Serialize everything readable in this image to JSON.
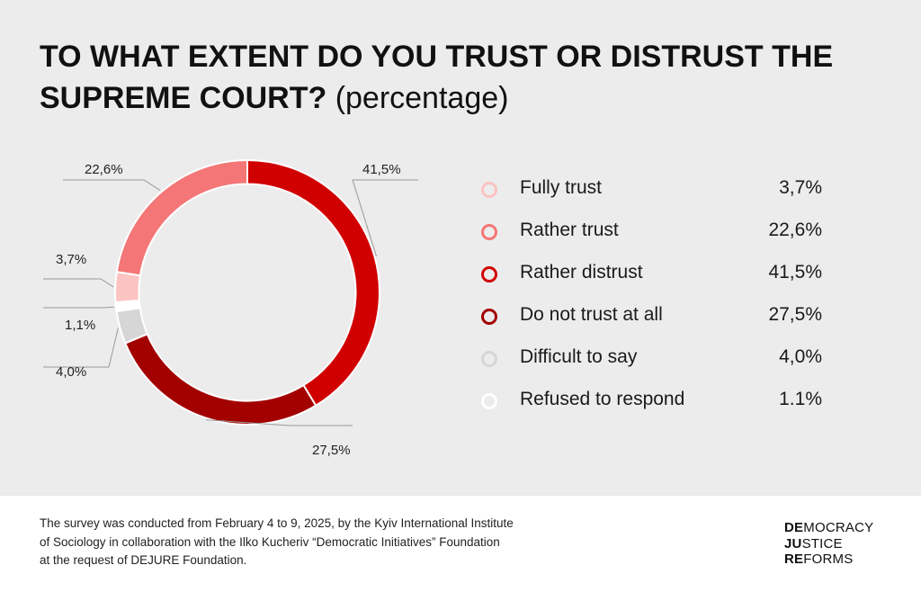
{
  "title": {
    "main": "TO WHAT EXTENT DO YOU TRUST OR DISTRUST THE SUPREME COURT?",
    "sub": "(percentage)"
  },
  "chart_data": {
    "type": "pie",
    "title": "TO WHAT EXTENT DO YOU TRUST OR DISTRUST THE SUPREME COURT? (percentage)",
    "series": [
      {
        "name": "Rather distrust",
        "value": 41.5,
        "label": "41,5%",
        "donut_label": "41,5%",
        "color": "#d10000"
      },
      {
        "name": "Do not trust at all",
        "value": 27.5,
        "label": "27,5%",
        "donut_label": "27,5%",
        "color": "#a30000"
      },
      {
        "name": "Difficult to say",
        "value": 4.0,
        "label": "4,0%",
        "donut_label": "4,0%",
        "color": "#d6d6d6"
      },
      {
        "name": "Refused to respond",
        "value": 1.1,
        "label": "1.1%",
        "donut_label": "1,1%",
        "color": "#ffffff"
      },
      {
        "name": "Fully trust",
        "value": 3.7,
        "label": "3,7%",
        "donut_label": "3,7%",
        "color": "#fcc3c3"
      },
      {
        "name": "Rather trust",
        "value": 22.6,
        "label": "22,6%",
        "donut_label": "22,6%",
        "color": "#f47676"
      }
    ],
    "legend_order": [
      "Fully trust",
      "Rather trust",
      "Rather distrust",
      "Do not trust at all",
      "Difficult to say",
      "Refused to respond"
    ],
    "legend_placement": "right",
    "inner_radius_ratio": 0.82
  },
  "legend": [
    {
      "label": "Fully trust",
      "value": "3,7%",
      "color": "#fcc3c3"
    },
    {
      "label": "Rather trust",
      "value": "22,6%",
      "color": "#f47676"
    },
    {
      "label": "Rather distrust",
      "value": "41,5%",
      "color": "#d10000"
    },
    {
      "label": "Do not trust at all",
      "value": "27,5%",
      "color": "#a30000"
    },
    {
      "label": "Difficult to say",
      "value": "4,0%",
      "color": "#d6d6d6"
    },
    {
      "label": "Refused to respond",
      "value": "1.1%",
      "color": "#ffffff"
    }
  ],
  "footer": {
    "lines": [
      "The survey was conducted from February 4 to 9, 2025, by the Kyiv International Institute",
      "of Sociology in collaboration with the Ilko Kucheriv “Democratic Initiatives” Foundation",
      "at the request of DEJURE Foundation."
    ]
  },
  "logo": {
    "lines": [
      {
        "bold": "DE",
        "rest": "MOCRACY"
      },
      {
        "bold": "JU",
        "rest": "STICE"
      },
      {
        "bold": "RE",
        "rest": "FORMS"
      }
    ]
  },
  "colors": {
    "background": "#ececec",
    "footer_background": "#ffffff",
    "text": "#111111",
    "leader_line": "#999999"
  }
}
